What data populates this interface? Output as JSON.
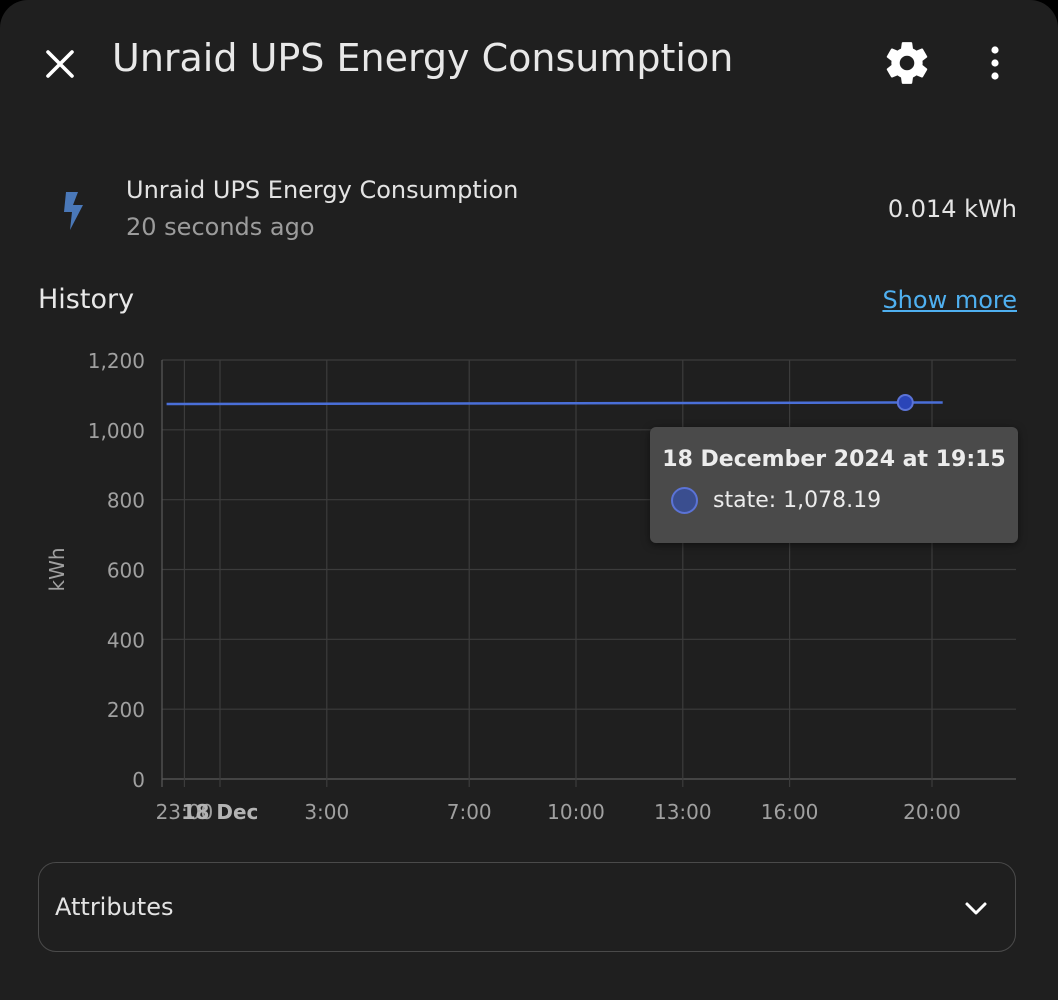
{
  "header": {
    "title": "Unraid UPS Energy Consumption",
    "close_icon": "close-icon",
    "settings_icon": "gear-icon",
    "menu_icon": "more-vertical-icon"
  },
  "entity": {
    "icon": "lightning-bolt-icon",
    "name": "Unraid UPS Energy Consumption",
    "last_changed": "20 seconds ago",
    "state": "0.014 kWh"
  },
  "history": {
    "title": "History",
    "show_more": "Show more"
  },
  "chart_data": {
    "type": "line",
    "ylabel": "kWh",
    "ylim": [
      0,
      1200
    ],
    "yticks": [
      "0",
      "200",
      "400",
      "600",
      "800",
      "1,000",
      "1,200"
    ],
    "xticks": [
      {
        "label": "23:00",
        "hour": -1
      },
      {
        "label": "18 Dec",
        "hour": 0,
        "bold": true
      },
      {
        "label": "3:00",
        "hour": 3
      },
      {
        "label": "7:00",
        "hour": 7
      },
      {
        "label": "10:00",
        "hour": 10
      },
      {
        "label": "13:00",
        "hour": 13
      },
      {
        "label": "16:00",
        "hour": 16
      },
      {
        "label": "20:00",
        "hour": 20
      }
    ],
    "xlim": [
      -1.5,
      22.4
    ],
    "series": [
      {
        "color": "#4a6fd8",
        "points": [
          {
            "hour": -1.5,
            "value": 1074
          },
          {
            "hour": 5,
            "value": 1075
          },
          {
            "hour": 10,
            "value": 1076
          },
          {
            "hour": 15,
            "value": 1077
          },
          {
            "hour": 19.25,
            "value": 1078.19
          },
          {
            "hour": 20.3,
            "value": 1078.3
          }
        ]
      }
    ],
    "highlight": {
      "hour": 19.25,
      "value": 1078.19
    }
  },
  "tooltip": {
    "title": "18 December 2024 at 19:15",
    "value": "state: 1,078.19"
  },
  "attributes": {
    "label": "Attributes",
    "chevron_icon": "chevron-down-icon"
  }
}
